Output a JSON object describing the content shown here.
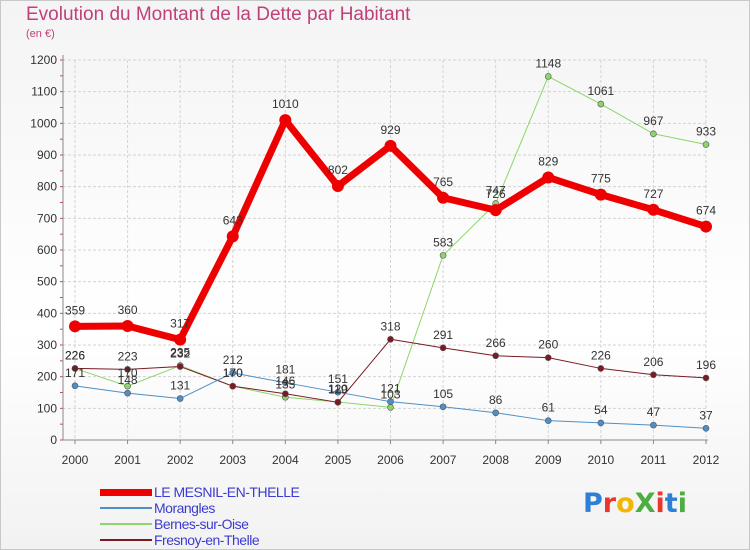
{
  "title": "Evolution du Montant de la Dette par Habitant",
  "subtitle": "(en €)",
  "logo_text": "ProXiti",
  "logo_colors": [
    "#2e7fd6",
    "#e8382d",
    "#f2b705",
    "#4cae3f",
    "#e8382d",
    "#2e7fd6",
    "#4cae3f"
  ],
  "chart_data": {
    "type": "line",
    "x": [
      "2000",
      "2001",
      "2002",
      "2003",
      "2004",
      "2005",
      "2006",
      "2007",
      "2008",
      "2009",
      "2010",
      "2011",
      "2012"
    ],
    "ylim": [
      0,
      1200
    ],
    "yticks": [
      0,
      100,
      200,
      300,
      400,
      500,
      600,
      700,
      800,
      900,
      1000,
      1100,
      1200
    ],
    "grid": true,
    "legend_placement": "bottom-left",
    "series": [
      {
        "name": "LE MESNIL-EN-THELLE",
        "color": "#ee0000",
        "width": 7,
        "values": [
          359,
          360,
          317,
          643,
          1010,
          802,
          929,
          765,
          726,
          829,
          775,
          727,
          674
        ]
      },
      {
        "name": "Morangles",
        "color": "#4f8fc6",
        "width": 1,
        "values": [
          171,
          148,
          131,
          212,
          181,
          151,
          121,
          105,
          86,
          61,
          54,
          47,
          37
        ]
      },
      {
        "name": "Bernes-sur-Oise",
        "color": "#8ed46a",
        "width": 1,
        "values": [
          226,
          170,
          235,
          170,
          135,
          120,
          103,
          583,
          747,
          1148,
          1061,
          967,
          933
        ]
      },
      {
        "name": "Fresnoy-en-Thelle",
        "color": "#7a1a22",
        "width": 1,
        "values": [
          226,
          223,
          232,
          170,
          146,
          119,
          318,
          291,
          266,
          260,
          226,
          206,
          196
        ]
      }
    ]
  }
}
